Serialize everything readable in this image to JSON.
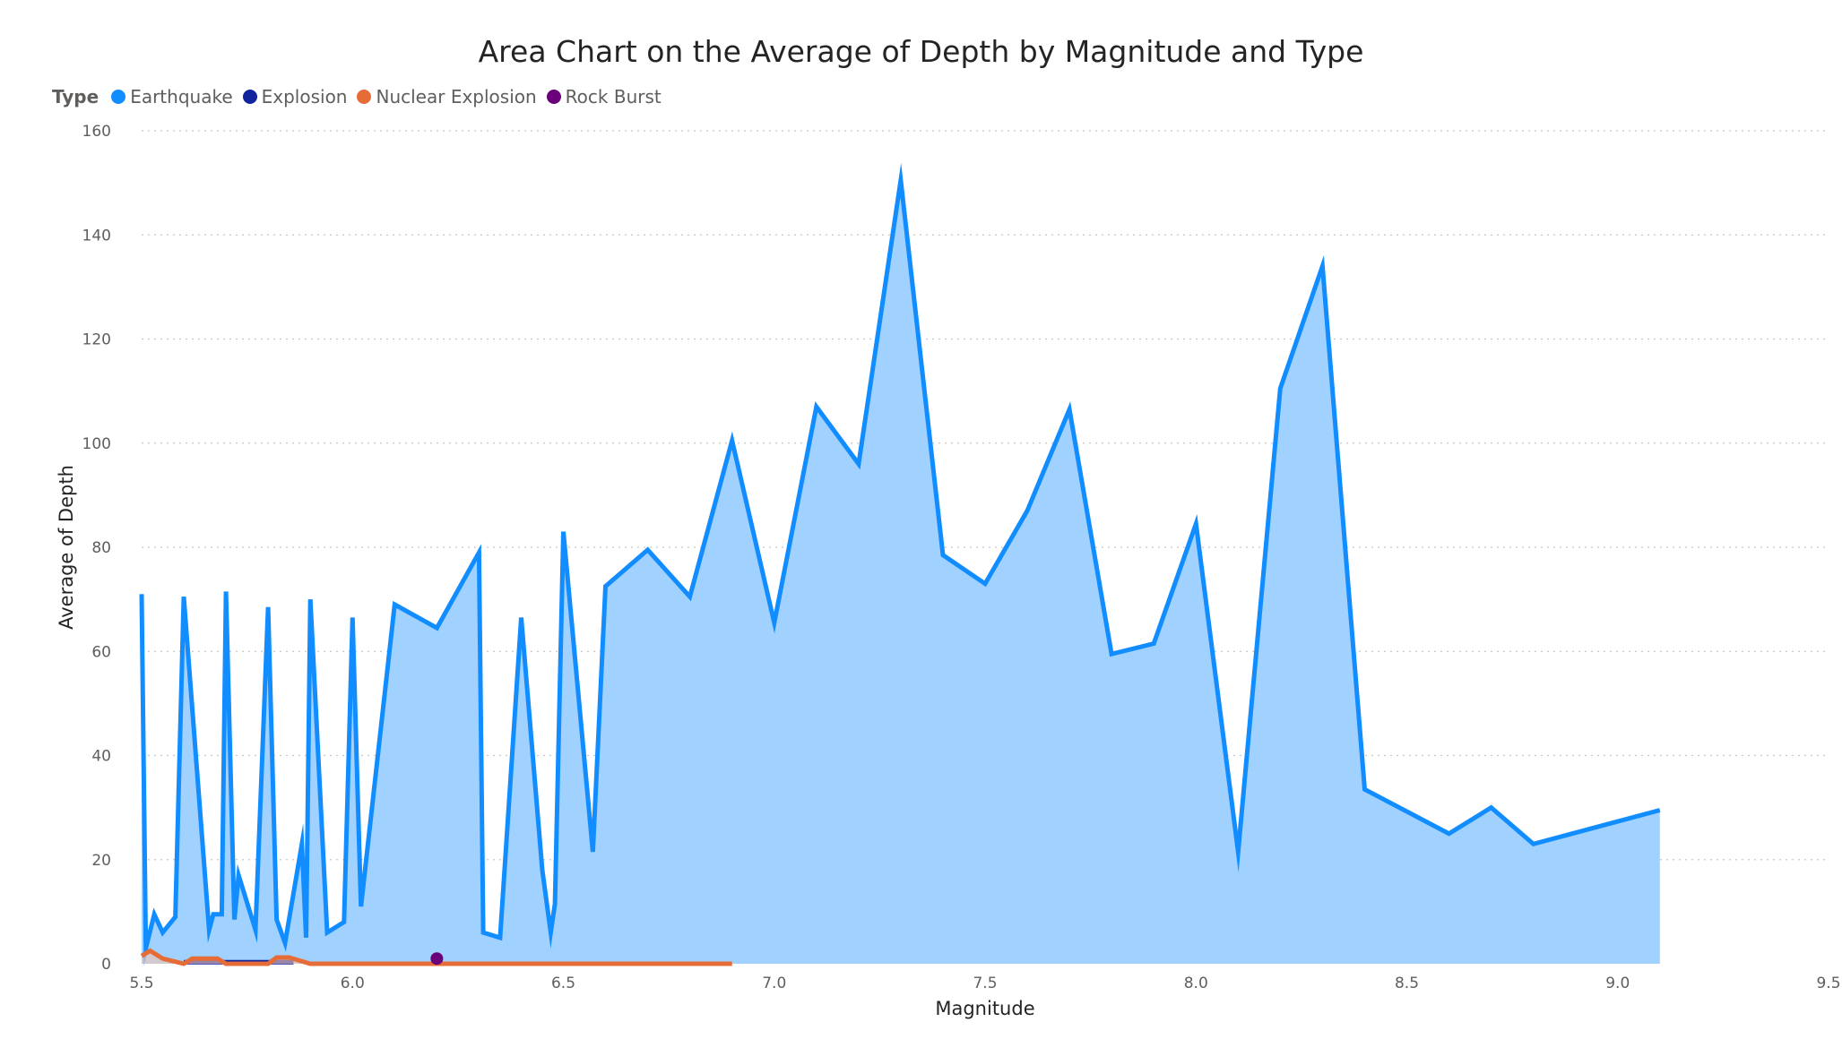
{
  "chart_data": {
    "type": "area",
    "title": "Area Chart on the Average of Depth by Magnitude and Type",
    "xlabel": "Magnitude",
    "ylabel": "Average of Depth",
    "xlim": [
      5.5,
      9.5
    ],
    "ylim": [
      0,
      160
    ],
    "x_ticks": [
      "5.5",
      "6.0",
      "6.5",
      "7.0",
      "7.5",
      "8.0",
      "8.5",
      "9.0",
      "9.5"
    ],
    "y_ticks": [
      "0",
      "20",
      "40",
      "60",
      "80",
      "100",
      "120",
      "140",
      "160"
    ],
    "legend_title": "Type",
    "legend_position": "top-left",
    "grid": true,
    "series": [
      {
        "name": "Earthquake",
        "color": "#118DFF",
        "fill": "#A0D1FF",
        "x": [
          5.5,
          5.51,
          5.53,
          5.55,
          5.58,
          5.6,
          5.66,
          5.67,
          5.69,
          5.7,
          5.72,
          5.73,
          5.77,
          5.8,
          5.82,
          5.84,
          5.88,
          5.89,
          5.9,
          5.94,
          5.98,
          6.0,
          6.02,
          6.1,
          6.2,
          6.3,
          6.31,
          6.35,
          6.4,
          6.45,
          6.47,
          6.48,
          6.5,
          6.57,
          6.6,
          6.7,
          6.8,
          6.9,
          7.0,
          7.1,
          7.2,
          7.3,
          7.4,
          7.5,
          7.6,
          7.7,
          7.8,
          7.9,
          8.0,
          8.1,
          8.2,
          8.3,
          8.4,
          8.6,
          8.7,
          8.8,
          9.1
        ],
        "values": [
          71,
          3,
          9.5,
          6,
          9,
          70.5,
          6.5,
          9.5,
          9.5,
          71.5,
          8.5,
          17,
          6.5,
          68.5,
          8.5,
          4,
          23,
          5,
          70,
          6,
          8,
          66.5,
          11,
          69,
          64.5,
          79,
          6,
          5,
          66.5,
          18,
          6,
          11.5,
          83,
          21.5,
          72.5,
          79.5,
          70.5,
          100.5,
          65.5,
          107,
          96,
          150.5,
          78.5,
          73,
          87,
          106.5,
          59.5,
          61.5,
          84.5,
          21.5,
          110.5,
          134,
          33.5,
          25,
          30,
          23,
          29.5
        ]
      },
      {
        "name": "Explosion",
        "color": "#12239E",
        "fill": "#9DA4D8",
        "x": [
          5.6,
          5.7,
          5.8,
          5.86
        ],
        "values": [
          0.3,
          0.3,
          0.3,
          0.3
        ]
      },
      {
        "name": "Nuclear Explosion",
        "color": "#E66C37",
        "fill": "#F5C4AF",
        "x": [
          5.5,
          5.52,
          5.55,
          5.6,
          5.62,
          5.68,
          5.7,
          5.8,
          5.82,
          5.85,
          5.9,
          6.0,
          6.2,
          6.4,
          6.6,
          6.9
        ],
        "values": [
          1.5,
          2.5,
          1.0,
          0.0,
          1.0,
          1.0,
          0.0,
          0.0,
          1.2,
          1.2,
          0.0,
          0.0,
          0.0,
          0.0,
          0.0,
          0.0
        ]
      },
      {
        "name": "Rock Burst",
        "color": "#6B007B",
        "fill": "#C099C9",
        "x": [
          6.2
        ],
        "values": [
          1
        ]
      }
    ]
  }
}
